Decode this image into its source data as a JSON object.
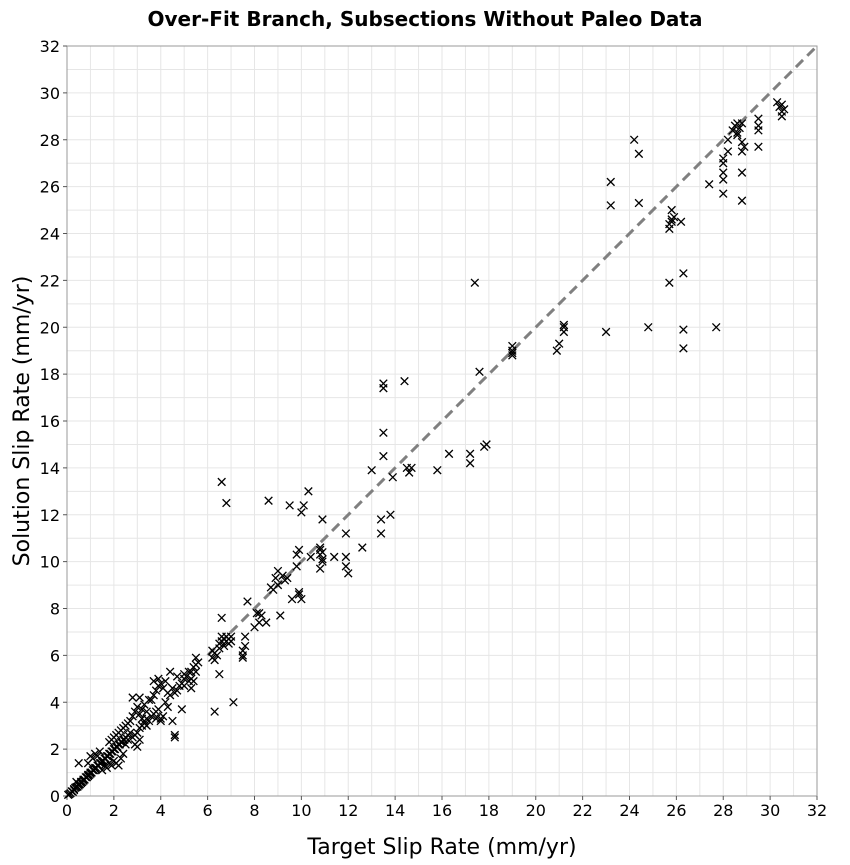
{
  "chart_data": {
    "type": "scatter",
    "title": "Over-Fit Branch, Subsections Without Paleo Data",
    "xlabel": "Target Slip Rate (mm/yr)",
    "ylabel": "Solution Slip Rate (mm/yr)",
    "xlim": [
      0,
      32
    ],
    "ylim": [
      0,
      32
    ],
    "xticks": [
      "0",
      "2",
      "4",
      "6",
      "8",
      "10",
      "12",
      "14",
      "16",
      "18",
      "20",
      "22",
      "24",
      "26",
      "28",
      "30",
      "32"
    ],
    "yticks": [
      "0",
      "2",
      "4",
      "6",
      "8",
      "10",
      "12",
      "14",
      "16",
      "18",
      "20",
      "22",
      "24",
      "26",
      "28",
      "30",
      "32"
    ],
    "grid": true,
    "marker": "x",
    "marker_color": "#000000",
    "reference_line": {
      "style": "dashed",
      "color": "#808080",
      "from": [
        6,
        6
      ],
      "to": [
        32,
        32
      ]
    },
    "points": [
      [
        0.05,
        0.05
      ],
      [
        0.1,
        0.08
      ],
      [
        0.15,
        0.12
      ],
      [
        0.2,
        0.2
      ],
      [
        0.25,
        0.18
      ],
      [
        0.3,
        0.3
      ],
      [
        0.3,
        0.25
      ],
      [
        0.35,
        0.35
      ],
      [
        0.4,
        0.38
      ],
      [
        0.45,
        0.4
      ],
      [
        0.5,
        0.5
      ],
      [
        0.5,
        0.45
      ],
      [
        0.55,
        0.5
      ],
      [
        0.6,
        0.6
      ],
      [
        0.6,
        0.55
      ],
      [
        0.65,
        0.6
      ],
      [
        0.7,
        0.7
      ],
      [
        0.7,
        0.65
      ],
      [
        0.75,
        0.7
      ],
      [
        0.8,
        0.8
      ],
      [
        0.85,
        0.8
      ],
      [
        0.9,
        0.9
      ],
      [
        0.9,
        0.85
      ],
      [
        0.95,
        0.9
      ],
      [
        1.0,
        1.0
      ],
      [
        1.0,
        0.95
      ],
      [
        1.05,
        1.0
      ],
      [
        1.1,
        1.1
      ],
      [
        1.15,
        1.1
      ],
      [
        1.2,
        1.2
      ],
      [
        1.2,
        1.15
      ],
      [
        1.25,
        1.2
      ],
      [
        1.3,
        1.3
      ],
      [
        1.35,
        1.3
      ],
      [
        1.4,
        1.4
      ],
      [
        1.45,
        1.4
      ],
      [
        1.5,
        1.5
      ],
      [
        1.5,
        1.45
      ],
      [
        1.55,
        1.5
      ],
      [
        1.6,
        1.6
      ],
      [
        1.65,
        1.6
      ],
      [
        1.7,
        1.7
      ],
      [
        1.75,
        1.7
      ],
      [
        1.8,
        1.8
      ],
      [
        1.85,
        1.8
      ],
      [
        1.9,
        1.9
      ],
      [
        1.95,
        1.9
      ],
      [
        2.0,
        2.0
      ],
      [
        2.05,
        2.0
      ],
      [
        2.1,
        2.1
      ],
      [
        2.15,
        2.1
      ],
      [
        2.2,
        2.2
      ],
      [
        2.25,
        2.2
      ],
      [
        2.3,
        2.3
      ],
      [
        2.35,
        2.3
      ],
      [
        2.4,
        2.4
      ],
      [
        2.45,
        2.4
      ],
      [
        2.5,
        2.5
      ],
      [
        2.6,
        2.6
      ],
      [
        2.7,
        2.7
      ],
      [
        0.5,
        1.4
      ],
      [
        0.4,
        0.6
      ],
      [
        0.9,
        1.4
      ],
      [
        1.0,
        1.7
      ],
      [
        1.1,
        1.6
      ],
      [
        1.2,
        1.8
      ],
      [
        1.3,
        1.7
      ],
      [
        1.4,
        1.9
      ],
      [
        1.5,
        1.1
      ],
      [
        1.6,
        1.3
      ],
      [
        1.7,
        1.2
      ],
      [
        1.8,
        1.4
      ],
      [
        1.9,
        1.3
      ],
      [
        2.0,
        1.5
      ],
      [
        2.1,
        1.4
      ],
      [
        2.2,
        1.3
      ],
      [
        2.3,
        1.6
      ],
      [
        2.4,
        1.8
      ],
      [
        2.5,
        2.2
      ],
      [
        2.6,
        2.4
      ],
      [
        1.8,
        2.3
      ],
      [
        1.9,
        2.4
      ],
      [
        2.0,
        2.5
      ],
      [
        2.1,
        2.6
      ],
      [
        2.2,
        2.7
      ],
      [
        2.3,
        2.8
      ],
      [
        2.4,
        2.9
      ],
      [
        2.5,
        3.0
      ],
      [
        2.6,
        3.1
      ],
      [
        2.7,
        3.2
      ],
      [
        2.8,
        2.5
      ],
      [
        2.9,
        2.6
      ],
      [
        3.0,
        2.7
      ],
      [
        3.1,
        2.9
      ],
      [
        3.2,
        3.0
      ],
      [
        3.3,
        3.2
      ],
      [
        3.4,
        3.3
      ],
      [
        3.0,
        2.1
      ],
      [
        3.1,
        2.4
      ],
      [
        2.9,
        2.2
      ],
      [
        2.8,
        3.4
      ],
      [
        2.9,
        3.6
      ],
      [
        3.0,
        3.8
      ],
      [
        3.1,
        3.5
      ],
      [
        3.2,
        3.7
      ],
      [
        3.3,
        3.9
      ],
      [
        3.4,
        3.6
      ],
      [
        3.5,
        4.1
      ],
      [
        2.8,
        4.2
      ],
      [
        3.1,
        4.2
      ],
      [
        3.2,
        3.3
      ],
      [
        3.3,
        3.1
      ],
      [
        3.4,
        3.0
      ],
      [
        3.5,
        3.2
      ],
      [
        3.6,
        3.4
      ],
      [
        3.7,
        3.5
      ],
      [
        3.8,
        3.6
      ],
      [
        3.9,
        3.7
      ],
      [
        4.0,
        3.3
      ],
      [
        4.1,
        3.4
      ],
      [
        3.6,
        4.1
      ],
      [
        3.7,
        4.3
      ],
      [
        3.8,
        4.5
      ],
      [
        3.9,
        4.7
      ],
      [
        4.0,
        4.8
      ],
      [
        4.1,
        4.6
      ],
      [
        4.2,
        4.9
      ],
      [
        3.7,
        4.9
      ],
      [
        3.9,
        5.0
      ],
      [
        4.3,
        4.4
      ],
      [
        4.4,
        4.3
      ],
      [
        4.5,
        4.6
      ],
      [
        4.6,
        4.4
      ],
      [
        4.7,
        4.5
      ],
      [
        4.8,
        4.7
      ],
      [
        4.9,
        4.8
      ],
      [
        5.0,
        5.0
      ],
      [
        4.5,
        3.2
      ],
      [
        4.6,
        2.6
      ],
      [
        4.6,
        2.5
      ],
      [
        4.2,
        4.0
      ],
      [
        4.3,
        3.8
      ],
      [
        4.0,
        3.2
      ],
      [
        3.8,
        3.3
      ],
      [
        4.4,
        5.3
      ],
      [
        4.7,
        5.1
      ],
      [
        5.0,
        5.2
      ],
      [
        5.1,
        5.1
      ],
      [
        5.2,
        4.9
      ],
      [
        5.3,
        5.0
      ],
      [
        5.3,
        5.3
      ],
      [
        5.4,
        5.5
      ],
      [
        5.5,
        5.6
      ],
      [
        5.5,
        5.3
      ],
      [
        5.4,
        4.9
      ],
      [
        5.3,
        4.6
      ],
      [
        5.5,
        5.9
      ],
      [
        5.6,
        5.7
      ],
      [
        5.2,
        5.3
      ],
      [
        5.0,
        4.7
      ],
      [
        4.9,
        3.7
      ],
      [
        6.2,
        5.9
      ],
      [
        6.2,
        6.2
      ],
      [
        6.3,
        6.1
      ],
      [
        6.3,
        5.8
      ],
      [
        6.4,
        6.0
      ],
      [
        6.5,
        6.3
      ],
      [
        6.5,
        6.5
      ],
      [
        6.6,
        6.6
      ],
      [
        6.6,
        6.8
      ],
      [
        6.7,
        6.7
      ],
      [
        6.7,
        6.4
      ],
      [
        6.8,
        6.6
      ],
      [
        6.8,
        6.8
      ],
      [
        6.9,
        6.5
      ],
      [
        6.9,
        6.7
      ],
      [
        7.0,
        6.6
      ],
      [
        7.0,
        6.8
      ],
      [
        6.3,
        3.6
      ],
      [
        6.5,
        5.2
      ],
      [
        6.6,
        7.6
      ],
      [
        6.6,
        13.4
      ],
      [
        6.8,
        12.5
      ],
      [
        7.1,
        4.0
      ],
      [
        7.5,
        6.0
      ],
      [
        7.5,
        5.9
      ],
      [
        7.5,
        6.2
      ],
      [
        7.6,
        6.4
      ],
      [
        7.6,
        6.8
      ],
      [
        7.7,
        8.3
      ],
      [
        8.0,
        7.2
      ],
      [
        8.1,
        7.8
      ],
      [
        8.2,
        7.4
      ],
      [
        8.2,
        7.8
      ],
      [
        8.3,
        7.7
      ],
      [
        8.5,
        7.4
      ],
      [
        8.6,
        12.6
      ],
      [
        8.7,
        8.9
      ],
      [
        8.8,
        8.8
      ],
      [
        8.9,
        9.3
      ],
      [
        9.0,
        9.6
      ],
      [
        9.0,
        9.0
      ],
      [
        9.1,
        7.7
      ],
      [
        9.2,
        9.4
      ],
      [
        9.3,
        9.2
      ],
      [
        9.4,
        9.3
      ],
      [
        9.5,
        12.4
      ],
      [
        9.6,
        8.4
      ],
      [
        9.8,
        9.8
      ],
      [
        9.8,
        10.3
      ],
      [
        9.9,
        10.5
      ],
      [
        9.9,
        8.7
      ],
      [
        9.9,
        8.6
      ],
      [
        10.0,
        8.4
      ],
      [
        10.0,
        12.1
      ],
      [
        10.1,
        12.4
      ],
      [
        10.3,
        13.0
      ],
      [
        10.4,
        10.2
      ],
      [
        10.8,
        10.3
      ],
      [
        10.8,
        10.6
      ],
      [
        10.8,
        10.5
      ],
      [
        10.9,
        10.4
      ],
      [
        10.9,
        10.1
      ],
      [
        10.9,
        10.0
      ],
      [
        10.9,
        11.8
      ],
      [
        10.8,
        9.7
      ],
      [
        11.4,
        10.2
      ],
      [
        11.9,
        11.2
      ],
      [
        11.9,
        10.2
      ],
      [
        11.9,
        9.8
      ],
      [
        12.0,
        9.5
      ],
      [
        12.6,
        10.6
      ],
      [
        13.4,
        11.2
      ],
      [
        13.4,
        11.8
      ],
      [
        13.5,
        17.4
      ],
      [
        13.5,
        17.6
      ],
      [
        13.5,
        15.5
      ],
      [
        13.5,
        14.5
      ],
      [
        13.0,
        13.9
      ],
      [
        13.8,
        12.0
      ],
      [
        13.9,
        13.6
      ],
      [
        14.4,
        17.7
      ],
      [
        14.5,
        14.0
      ],
      [
        14.6,
        13.8
      ],
      [
        14.7,
        14.0
      ],
      [
        15.8,
        13.9
      ],
      [
        16.3,
        14.6
      ],
      [
        17.2,
        14.2
      ],
      [
        17.2,
        14.6
      ],
      [
        17.4,
        21.9
      ],
      [
        17.6,
        18.1
      ],
      [
        17.8,
        14.9
      ],
      [
        17.9,
        15.0
      ],
      [
        19.0,
        18.8
      ],
      [
        19.0,
        18.9
      ],
      [
        19.0,
        19.0
      ],
      [
        19.0,
        19.2
      ],
      [
        20.9,
        19.0
      ],
      [
        21.0,
        19.3
      ],
      [
        21.2,
        19.8
      ],
      [
        21.2,
        20.0
      ],
      [
        21.2,
        20.1
      ],
      [
        23.0,
        19.8
      ],
      [
        23.2,
        25.2
      ],
      [
        23.2,
        26.2
      ],
      [
        24.2,
        28.0
      ],
      [
        24.4,
        27.4
      ],
      [
        24.4,
        25.3
      ],
      [
        24.8,
        20.0
      ],
      [
        25.7,
        21.9
      ],
      [
        25.7,
        24.2
      ],
      [
        25.7,
        24.4
      ],
      [
        25.8,
        24.6
      ],
      [
        25.8,
        24.5
      ],
      [
        25.8,
        25.0
      ],
      [
        25.9,
        24.7
      ],
      [
        26.2,
        24.5
      ],
      [
        26.3,
        22.3
      ],
      [
        26.3,
        19.9
      ],
      [
        26.3,
        19.1
      ],
      [
        27.4,
        26.1
      ],
      [
        27.7,
        20.0
      ],
      [
        28.0,
        25.7
      ],
      [
        28.0,
        26.3
      ],
      [
        28.0,
        26.6
      ],
      [
        28.0,
        27.0
      ],
      [
        28.0,
        27.2
      ],
      [
        28.2,
        27.5
      ],
      [
        28.2,
        28.0
      ],
      [
        28.4,
        28.4
      ],
      [
        28.5,
        28.6
      ],
      [
        28.6,
        28.7
      ],
      [
        28.6,
        28.3
      ],
      [
        28.6,
        28.2
      ],
      [
        28.7,
        28.5
      ],
      [
        28.8,
        28.7
      ],
      [
        28.8,
        27.9
      ],
      [
        28.8,
        27.5
      ],
      [
        28.8,
        26.6
      ],
      [
        28.8,
        25.4
      ],
      [
        28.9,
        27.7
      ],
      [
        29.5,
        28.9
      ],
      [
        29.5,
        28.6
      ],
      [
        29.5,
        28.4
      ],
      [
        29.5,
        27.7
      ],
      [
        30.3,
        29.6
      ],
      [
        30.4,
        29.4
      ],
      [
        30.5,
        29.5
      ],
      [
        30.5,
        29.2
      ],
      [
        30.5,
        29.0
      ],
      [
        30.6,
        29.3
      ]
    ]
  }
}
